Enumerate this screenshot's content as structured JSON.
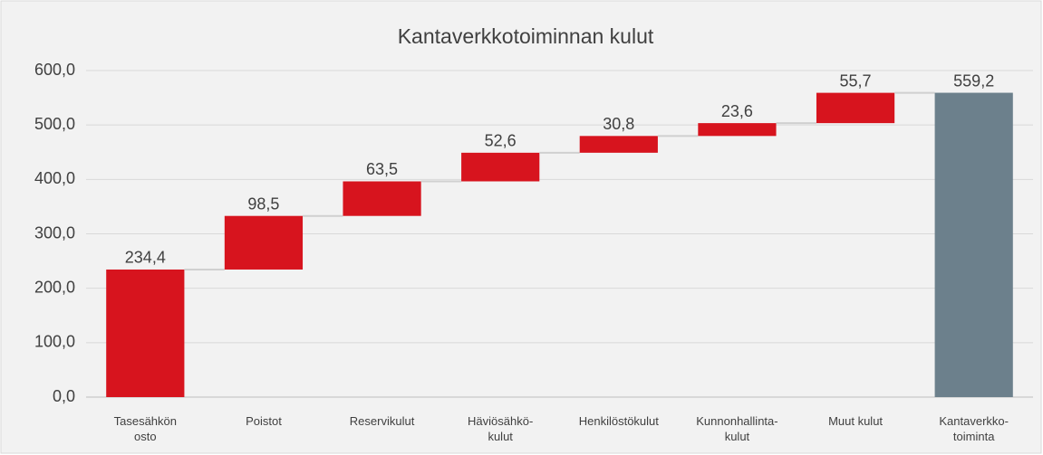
{
  "chart_data": {
    "type": "waterfall",
    "title": "Kantaverkkotoiminnan  kulut",
    "categories": [
      "Tasesähkön\nosto",
      "Poistot",
      "Reservikulut",
      "Häviösähkö-\nkulut",
      "Henkilöstökulut",
      "Kunnonhallinta-\nkulut",
      "Muut kulut",
      "Kantaverkko-\ntoiminta"
    ],
    "values": [
      234.4,
      98.5,
      63.5,
      52.6,
      30.8,
      23.6,
      55.7,
      559.2
    ],
    "value_labels": [
      "234,4",
      "98,5",
      "63,5",
      "52,6",
      "30,8",
      "23,6",
      "55,7",
      "559,2"
    ],
    "is_total": [
      false,
      false,
      false,
      false,
      false,
      false,
      false,
      true
    ],
    "increase_color": "#d7141e",
    "total_color": "#6c808c",
    "ylim": [
      0,
      600
    ],
    "yticks": [
      {
        "value": 0,
        "label": "0,0"
      },
      {
        "value": 100,
        "label": "100,0"
      },
      {
        "value": 200,
        "label": "200,0"
      },
      {
        "value": 300,
        "label": "300,0"
      },
      {
        "value": 400,
        "label": "400,0"
      },
      {
        "value": 500,
        "label": "500,0"
      },
      {
        "value": 600,
        "label": "600,0"
      }
    ],
    "grid": true
  }
}
